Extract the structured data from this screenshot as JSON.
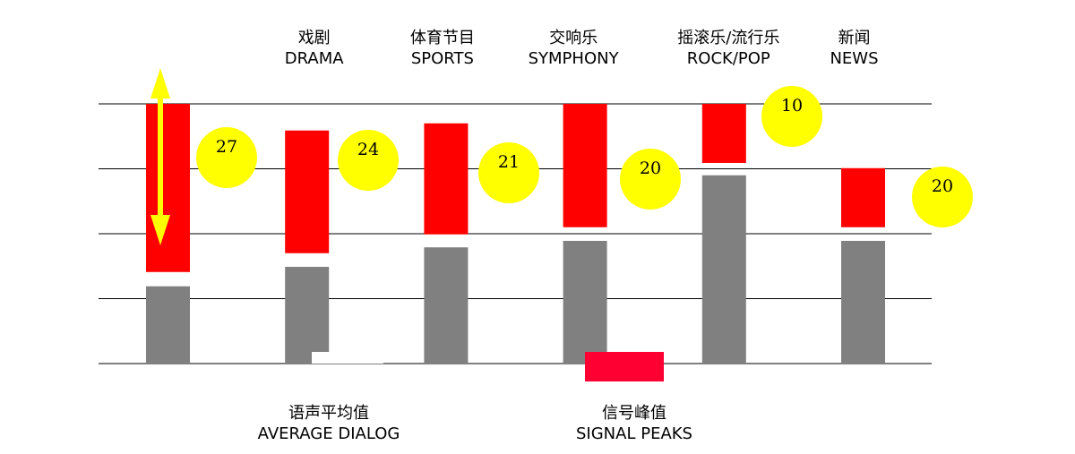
{
  "chart_data": {
    "type": "bar",
    "categories": [
      null,
      [
        "戏剧",
        "DRAMA"
      ],
      [
        "体育节目",
        "SPORTS"
      ],
      [
        "交响乐",
        "SYMPHONY"
      ],
      [
        "摇滚乐/流行乐",
        "ROCK/POP"
      ],
      [
        "新闻",
        "NEWS"
      ]
    ],
    "series": [
      {
        "name": [
          "语声平均值",
          "AVERAGE DIALOG"
        ],
        "color": "#808080",
        "values": [
          11.9,
          14.9,
          17.9,
          18.9,
          29.0,
          18.9
        ]
      },
      {
        "name": [
          "信号峰值",
          "SIGNAL PEAKS"
        ],
        "color": "#ff0000",
        "values": [
          40,
          35.9,
          37.0,
          40,
          40,
          30.1
        ],
        "lows": [
          14.1,
          17.0,
          19.9,
          21.0,
          30.9,
          21.0
        ]
      }
    ],
    "dynamic_range": [
      27,
      24,
      21,
      20,
      10,
      20
    ],
    "ylim": [
      0,
      40
    ],
    "yticks": [
      0,
      10,
      20,
      30,
      40
    ],
    "grid": true
  }
}
